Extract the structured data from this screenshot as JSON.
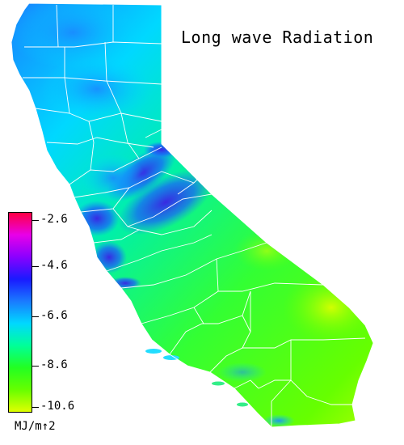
{
  "title": "Long wave Radiation",
  "legend": {
    "unit": "MJ/m↑2",
    "ticks": [
      "-2.6",
      "-4.6",
      "-6.6",
      "-8.6",
      "-10.6"
    ],
    "gradient": [
      "#ff0044",
      "#e800e8",
      "#8a00ff",
      "#1a1aff",
      "#1a7aff",
      "#00d8ff",
      "#00ff99",
      "#22ff22",
      "#66ff00",
      "#dfff00"
    ]
  },
  "map": {
    "region": "California",
    "boundaries": "counties",
    "boundary_color": "#ffffff",
    "palette": {
      "deep_blue": "#3b1fe6",
      "blue": "#1a6aff",
      "cyan": "#00d8ff",
      "aqua_green": "#00f0a8",
      "green": "#33ff33",
      "lime": "#9cff00",
      "yellow_green": "#ccff00"
    }
  }
}
